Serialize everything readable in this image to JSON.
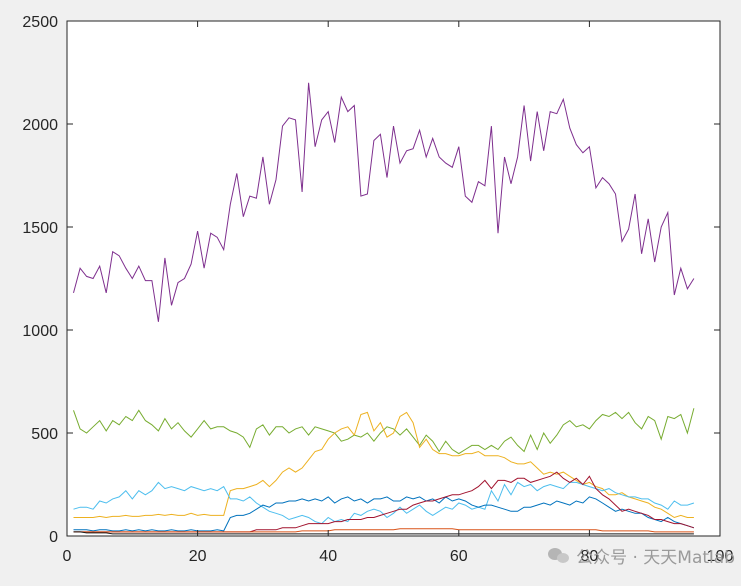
{
  "chart_data": {
    "type": "line",
    "xlim": [
      0,
      100
    ],
    "ylim": [
      0,
      2500
    ],
    "x_ticks": [
      0,
      20,
      40,
      60,
      80,
      100
    ],
    "y_ticks": [
      0,
      500,
      1000,
      1500,
      2000,
      2500
    ],
    "x_tick_labels": [
      "0",
      "20",
      "40",
      "60",
      "80",
      "100"
    ],
    "y_tick_labels": [
      "0",
      "500",
      "1000",
      "1500",
      "2000",
      "2500"
    ],
    "grid": false,
    "legend": "none",
    "x": [
      1,
      2,
      3,
      4,
      5,
      6,
      7,
      8,
      9,
      10,
      11,
      12,
      13,
      14,
      15,
      16,
      17,
      18,
      19,
      20,
      21,
      22,
      23,
      24,
      25,
      26,
      27,
      28,
      29,
      30,
      31,
      32,
      33,
      34,
      35,
      36,
      37,
      38,
      39,
      40,
      41,
      42,
      43,
      44,
      45,
      46,
      47,
      48,
      49,
      50,
      51,
      52,
      53,
      54,
      55,
      56,
      57,
      58,
      59,
      60,
      61,
      62,
      63,
      64,
      65,
      66,
      67,
      68,
      69,
      70,
      71,
      72,
      73,
      74,
      75,
      76,
      77,
      78,
      79,
      80,
      81,
      82,
      83,
      84,
      85,
      86,
      87,
      88,
      89,
      90,
      91,
      92,
      93,
      94,
      95,
      96
    ],
    "series": [
      {
        "color": "#7e2f8e",
        "values": [
          1180,
          1300,
          1260,
          1250,
          1310,
          1180,
          1380,
          1360,
          1300,
          1250,
          1310,
          1240,
          1240,
          1040,
          1350,
          1120,
          1230,
          1250,
          1320,
          1480,
          1300,
          1470,
          1450,
          1390,
          1610,
          1760,
          1550,
          1650,
          1640,
          1840,
          1610,
          1730,
          1990,
          2030,
          2020,
          1670,
          2200,
          1890,
          2020,
          2060,
          1910,
          2130,
          2060,
          2090,
          1650,
          1660,
          1920,
          1950,
          1740,
          1990,
          1810,
          1870,
          1880,
          1970,
          1840,
          1930,
          1840,
          1810,
          1790,
          1890,
          1650,
          1620,
          1720,
          1700,
          1990,
          1470,
          1840,
          1710,
          1840,
          2090,
          1820,
          2060,
          1870,
          2060,
          2050,
          2120,
          1980,
          1900,
          1860,
          1890,
          1690,
          1740,
          1710,
          1660,
          1430,
          1490,
          1660,
          1370,
          1540,
          1330,
          1500,
          1570,
          1170,
          1300,
          1200,
          1250
        ]
      },
      {
        "color": "#77ac30",
        "values": [
          610,
          520,
          500,
          530,
          560,
          510,
          560,
          540,
          580,
          560,
          610,
          560,
          540,
          510,
          570,
          520,
          550,
          510,
          480,
          520,
          560,
          520,
          530,
          530,
          510,
          500,
          480,
          430,
          520,
          540,
          490,
          530,
          530,
          500,
          520,
          530,
          490,
          530,
          520,
          510,
          500,
          460,
          470,
          490,
          480,
          500,
          460,
          500,
          530,
          520,
          490,
          520,
          480,
          440,
          490,
          460,
          410,
          460,
          420,
          400,
          420,
          440,
          440,
          420,
          440,
          420,
          460,
          480,
          440,
          410,
          490,
          420,
          500,
          450,
          490,
          540,
          560,
          530,
          540,
          520,
          560,
          590,
          580,
          600,
          570,
          600,
          550,
          520,
          580,
          560,
          470,
          580,
          570,
          590,
          500,
          620
        ]
      },
      {
        "color": "#edb120",
        "values": [
          90,
          90,
          90,
          90,
          95,
          90,
          95,
          95,
          100,
          95,
          95,
          100,
          100,
          105,
          100,
          105,
          100,
          100,
          110,
          100,
          105,
          100,
          100,
          100,
          220,
          230,
          230,
          240,
          250,
          270,
          240,
          270,
          310,
          330,
          310,
          330,
          370,
          410,
          420,
          470,
          500,
          520,
          530,
          490,
          590,
          600,
          510,
          550,
          480,
          500,
          580,
          600,
          550,
          430,
          470,
          420,
          400,
          400,
          390,
          390,
          400,
          400,
          410,
          390,
          390,
          390,
          380,
          360,
          350,
          350,
          360,
          330,
          300,
          310,
          300,
          310,
          290,
          270,
          250,
          260,
          240,
          230,
          200,
          200,
          210,
          190,
          180,
          170,
          160,
          140,
          130,
          110,
          90,
          100,
          90,
          90
        ]
      },
      {
        "color": "#4dbeee",
        "values": [
          130,
          140,
          140,
          130,
          170,
          160,
          180,
          190,
          220,
          180,
          220,
          200,
          220,
          260,
          230,
          240,
          230,
          220,
          240,
          230,
          220,
          230,
          220,
          240,
          180,
          180,
          170,
          190,
          160,
          140,
          120,
          110,
          100,
          80,
          90,
          100,
          90,
          70,
          60,
          90,
          70,
          80,
          70,
          110,
          100,
          120,
          130,
          120,
          90,
          110,
          140,
          110,
          130,
          150,
          120,
          100,
          120,
          140,
          130,
          160,
          150,
          130,
          140,
          130,
          220,
          170,
          250,
          200,
          260,
          240,
          250,
          220,
          240,
          250,
          240,
          230,
          260,
          260,
          250,
          240,
          230,
          220,
          230,
          210,
          200,
          190,
          190,
          180,
          180,
          160,
          150,
          130,
          170,
          150,
          150,
          160
        ]
      },
      {
        "color": "#0072bd",
        "values": [
          30,
          30,
          30,
          25,
          30,
          30,
          25,
          25,
          30,
          25,
          30,
          25,
          30,
          25,
          25,
          30,
          25,
          25,
          30,
          25,
          25,
          25,
          30,
          25,
          90,
          100,
          100,
          110,
          130,
          150,
          140,
          160,
          160,
          170,
          170,
          180,
          170,
          180,
          170,
          190,
          160,
          180,
          190,
          170,
          180,
          160,
          180,
          180,
          190,
          170,
          170,
          190,
          180,
          190,
          170,
          180,
          160,
          190,
          170,
          180,
          170,
          150,
          140,
          150,
          150,
          140,
          130,
          120,
          120,
          140,
          140,
          150,
          160,
          150,
          170,
          160,
          150,
          170,
          160,
          190,
          180,
          160,
          140,
          120,
          130,
          120,
          110,
          110,
          90,
          80,
          70,
          90,
          70,
          60,
          50,
          40
        ]
      },
      {
        "color": "#a2142f",
        "values": [
          20,
          20,
          20,
          20,
          20,
          20,
          20,
          20,
          20,
          20,
          20,
          20,
          20,
          20,
          20,
          20,
          20,
          20,
          20,
          20,
          20,
          20,
          20,
          20,
          20,
          20,
          20,
          20,
          30,
          30,
          30,
          30,
          40,
          40,
          40,
          50,
          60,
          60,
          60,
          60,
          70,
          70,
          80,
          80,
          80,
          90,
          90,
          100,
          110,
          120,
          130,
          130,
          150,
          160,
          170,
          170,
          180,
          190,
          200,
          200,
          210,
          220,
          240,
          270,
          230,
          270,
          270,
          260,
          280,
          280,
          260,
          270,
          280,
          290,
          310,
          280,
          260,
          280,
          250,
          290,
          230,
          200,
          180,
          150,
          120,
          130,
          120,
          110,
          100,
          80,
          80,
          70,
          60,
          60,
          50,
          40
        ]
      },
      {
        "color": "#d95319",
        "values": [
          20,
          20,
          20,
          20,
          20,
          20,
          20,
          20,
          20,
          20,
          20,
          20,
          20,
          20,
          20,
          20,
          20,
          20,
          20,
          20,
          20,
          20,
          20,
          20,
          20,
          20,
          20,
          20,
          20,
          20,
          20,
          20,
          20,
          20,
          20,
          25,
          25,
          25,
          25,
          25,
          30,
          30,
          30,
          30,
          30,
          30,
          30,
          30,
          30,
          30,
          35,
          35,
          35,
          35,
          35,
          35,
          35,
          35,
          35,
          30,
          30,
          30,
          30,
          30,
          30,
          30,
          30,
          30,
          30,
          30,
          30,
          30,
          30,
          30,
          30,
          30,
          30,
          30,
          30,
          30,
          30,
          25,
          25,
          25,
          25,
          25,
          25,
          25,
          25,
          20,
          20,
          20,
          20,
          20,
          20,
          20
        ]
      },
      {
        "color": "#1a1a1a",
        "values": [
          20,
          20,
          15,
          15,
          15,
          15,
          10,
          10,
          10,
          10,
          10,
          10,
          10,
          10,
          10,
          10,
          10,
          10,
          10,
          10,
          10,
          10,
          10,
          10,
          10,
          10,
          10,
          10,
          10,
          10,
          10,
          10,
          10,
          10,
          10,
          10,
          10,
          10,
          10,
          10,
          10,
          10,
          10,
          10,
          10,
          10,
          10,
          10,
          10,
          10,
          10,
          10,
          10,
          10,
          10,
          10,
          10,
          10,
          10,
          10,
          10,
          10,
          10,
          10,
          10,
          10,
          10,
          10,
          10,
          10,
          10,
          10,
          10,
          10,
          10,
          10,
          10,
          10,
          10,
          10,
          10,
          10,
          10,
          10,
          10,
          10,
          10,
          10,
          10,
          10,
          10,
          10,
          10,
          10,
          10,
          10
        ]
      }
    ]
  },
  "watermark": {
    "text": "公众号 · 天天Matlab"
  }
}
